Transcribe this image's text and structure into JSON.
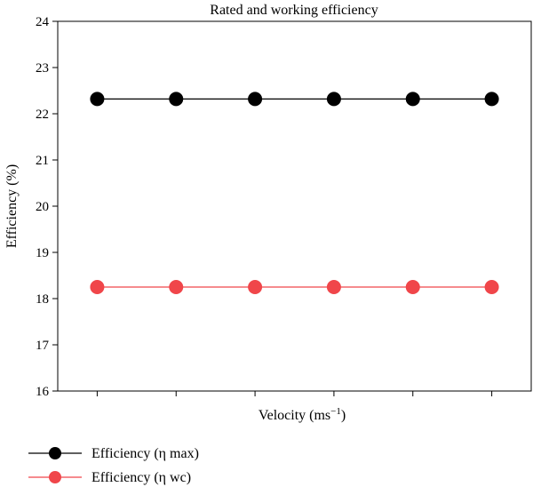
{
  "chart_data": {
    "type": "line",
    "title": "Rated and working efficiency",
    "xlabel": "Velocity (ms",
    "xlabel_sup": "−1",
    "xlabel_close": ")",
    "ylabel": "Efficiency (%)",
    "ylim": [
      16,
      24
    ],
    "yticks": [
      "16",
      "17",
      "18",
      "19",
      "20",
      "21",
      "22",
      "23",
      "24"
    ],
    "x": [
      1,
      2,
      3,
      4,
      5,
      6
    ],
    "xlim": [
      0.5,
      6.5
    ],
    "xtick_labels_shown": false,
    "grid": false,
    "legend_position": "bottom-left, below plot",
    "series": [
      {
        "name": "Efficiency (η max)",
        "values": [
          22.32,
          22.32,
          22.32,
          22.32,
          22.32,
          22.32
        ],
        "color": "#000000"
      },
      {
        "name": "Efficiency (η wc)",
        "values": [
          18.25,
          18.25,
          18.25,
          18.25,
          18.25,
          18.25
        ],
        "color": "#f0464a"
      }
    ]
  }
}
